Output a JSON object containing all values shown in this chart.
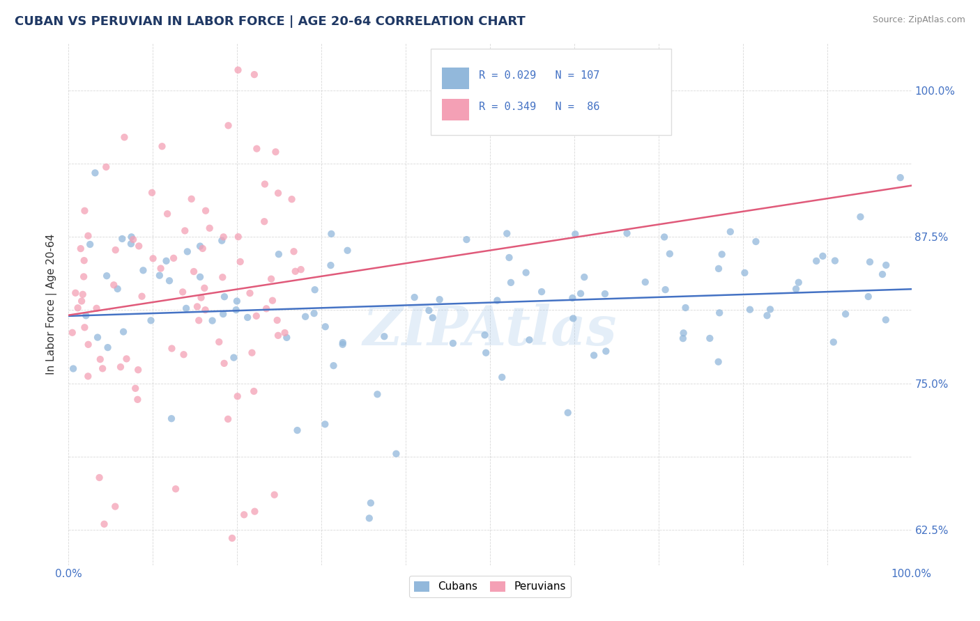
{
  "title": "CUBAN VS PERUVIAN IN LABOR FORCE | AGE 20-64 CORRELATION CHART",
  "source": "Source: ZipAtlas.com",
  "ylabel": "In Labor Force | Age 20-64",
  "xlim": [
    0.0,
    1.0
  ],
  "ylim": [
    0.595,
    1.04
  ],
  "x_ticks": [
    0.0,
    0.1,
    0.2,
    0.3,
    0.4,
    0.5,
    0.6,
    0.7,
    0.8,
    0.9,
    1.0
  ],
  "y_ticks": [
    0.625,
    0.6875,
    0.75,
    0.8125,
    0.875,
    0.9375,
    1.0
  ],
  "y_tick_labels": [
    "62.5%",
    "",
    "75.0%",
    "",
    "87.5%",
    "",
    "100.0%"
  ],
  "cubans_color": "#92b8db",
  "peruvians_color": "#f4a0b5",
  "cubans_line_color": "#4472c4",
  "peruvians_line_color": "#e05a7a",
  "R_cubans": 0.029,
  "N_cubans": 107,
  "R_peruvians": 0.349,
  "N_peruvians": 86,
  "watermark_text": "ZIPAtlas",
  "background_color": "#ffffff",
  "grid_color": "#c8c8c8",
  "title_color": "#1f3864",
  "axis_label_color": "#333333",
  "tick_label_color": "#4472c4",
  "legend_text_color": "#333333",
  "legend_value_color": "#4472c4"
}
